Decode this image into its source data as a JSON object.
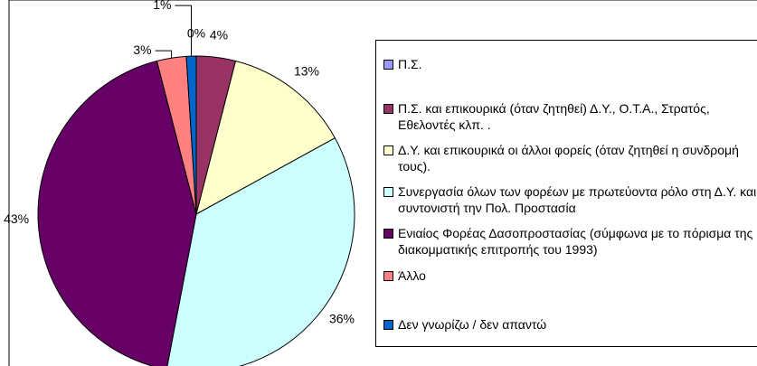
{
  "chart_data": {
    "type": "pie",
    "categories": [
      "Π.Σ.",
      "Π.Σ. και επικουρικά (όταν ζητηθεί) Δ.Υ., Ο.Τ.Α., Στρατός, Εθελοντές κλπ. .",
      "Δ.Υ. και επικουρικά οι άλλοι φορείς (όταν ζητηθεί η συνδρομή τους).",
      "Συνεργασία όλων των φορέων με πρωτεύοντα ρόλο στη Δ.Υ. και συντονιστή την Πολ. Προστασία",
      "Ενιαίος Φορέας Δασοπροστασίας (σύμφωνα με το πόρισμα της διακομματικής επιτροπής του 1993)",
      "Άλλο",
      "Δεν γνωρίζω / δεν απαντώ"
    ],
    "values": [
      0,
      4,
      13,
      36,
      43,
      3,
      1
    ],
    "value_labels": [
      "0%",
      "4%",
      "13%",
      "36%",
      "43%",
      "3%",
      "1%"
    ],
    "colors": [
      "#9999ff",
      "#993366",
      "#ffffcc",
      "#ccffff",
      "#660066",
      "#ff8080",
      "#0066cc"
    ],
    "legend": "right"
  }
}
